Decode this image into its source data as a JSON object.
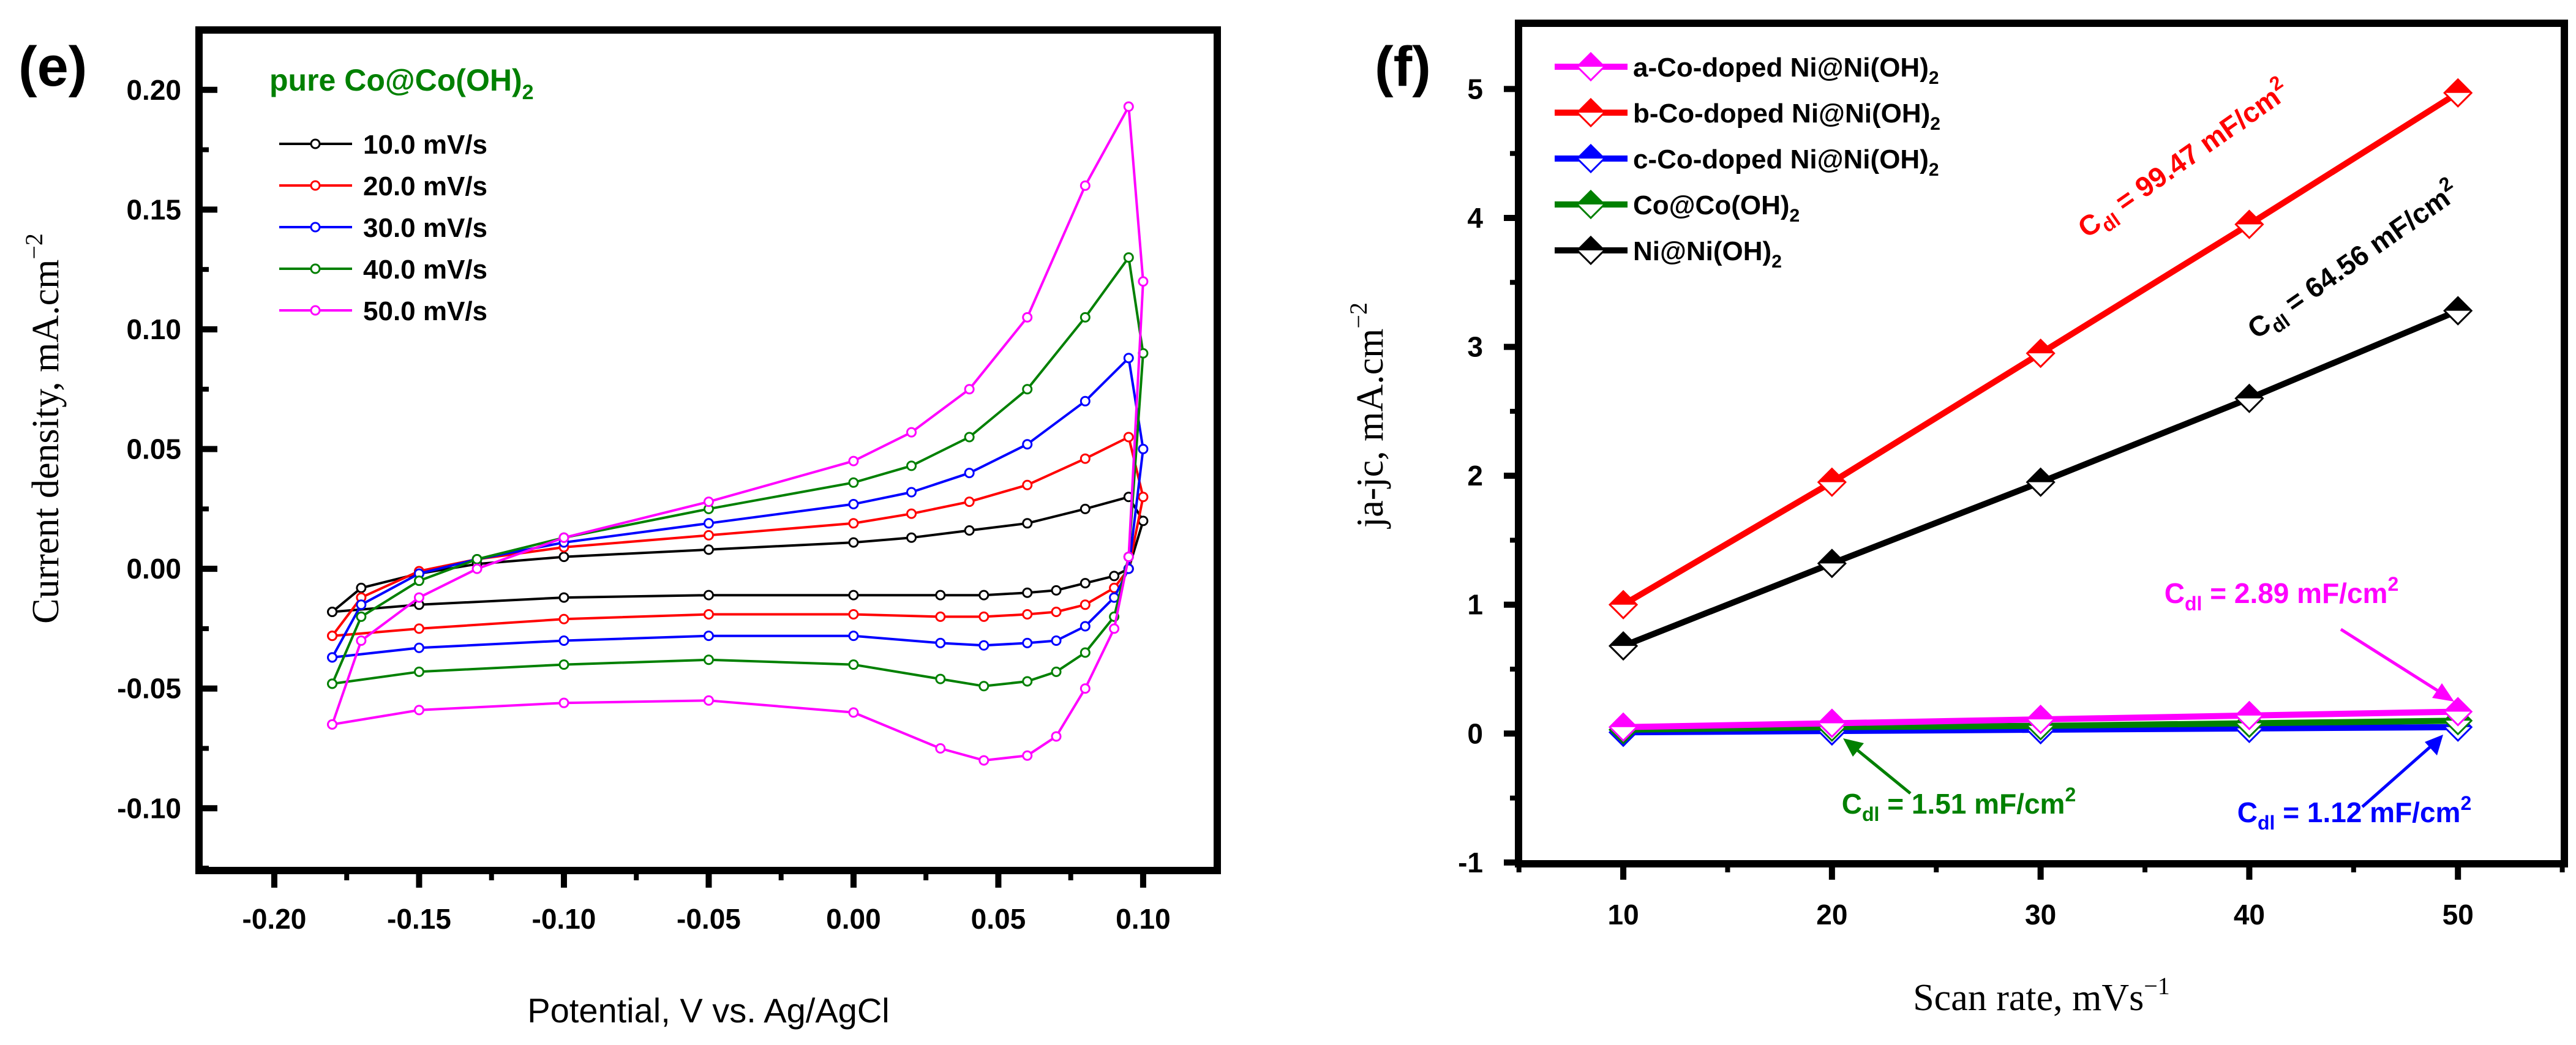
{
  "chart_data": [
    {
      "type": "line",
      "panel_label": "(e)",
      "title": "pure Co@Co(OH)",
      "title_sub": "2",
      "xlabel": "Potential, V vs. Ag/AgCl",
      "ylabel": "Current density, mA.cm",
      "ylabel_sup": "−2",
      "xlim": [
        -0.226,
        0.1256
      ],
      "ylim": [
        -0.126,
        0.225
      ],
      "xticks": [
        -0.2,
        -0.15,
        -0.1,
        -0.05,
        0.0,
        0.05,
        0.1
      ],
      "xtick_labels": [
        "-0.20",
        "-0.15",
        "-0.10",
        "-0.05",
        "0.00",
        "0.05",
        "0.10"
      ],
      "yticks": [
        -0.1,
        -0.05,
        0.0,
        0.05,
        0.1,
        0.15,
        0.2
      ],
      "ytick_labels": [
        "-0.10",
        "-0.05",
        "0.00",
        "0.05",
        "0.10",
        "0.15",
        "0.20"
      ],
      "legend_position": "top-left",
      "x_anodic": [
        -0.18,
        -0.17,
        -0.15,
        -0.13,
        -0.1,
        -0.05,
        0.0,
        0.02,
        0.04,
        0.06,
        0.08,
        0.095
      ],
      "x_cathodic": [
        0.1,
        0.095,
        0.09,
        0.08,
        0.07,
        0.06,
        0.045,
        0.03,
        0.0,
        -0.05,
        -0.1,
        -0.15,
        -0.18
      ],
      "series": [
        {
          "name": "10.0 mV/s",
          "color": "#000000",
          "anodic": [
            -0.018,
            -0.008,
            -0.002,
            0.002,
            0.005,
            0.008,
            0.011,
            0.013,
            0.016,
            0.019,
            0.025,
            0.03
          ],
          "cathodic": [
            0.02,
            0.0,
            -0.003,
            -0.006,
            -0.009,
            -0.01,
            -0.011,
            -0.011,
            -0.011,
            -0.011,
            -0.012,
            -0.015,
            -0.018
          ]
        },
        {
          "name": "20.0 mV/s",
          "color": "#ff0000",
          "anodic": [
            -0.028,
            -0.012,
            -0.001,
            0.004,
            0.009,
            0.014,
            0.019,
            0.023,
            0.028,
            0.035,
            0.046,
            0.055
          ],
          "cathodic": [
            0.03,
            0.0,
            -0.008,
            -0.015,
            -0.018,
            -0.019,
            -0.02,
            -0.02,
            -0.019,
            -0.019,
            -0.021,
            -0.025,
            -0.028
          ]
        },
        {
          "name": "30.0 mV/s",
          "color": "#0000ff",
          "anodic": [
            -0.037,
            -0.015,
            -0.002,
            0.004,
            0.011,
            0.019,
            0.027,
            0.032,
            0.04,
            0.052,
            0.07,
            0.088
          ],
          "cathodic": [
            0.05,
            0.0,
            -0.012,
            -0.024,
            -0.03,
            -0.031,
            -0.032,
            -0.031,
            -0.028,
            -0.028,
            -0.03,
            -0.033,
            -0.037
          ]
        },
        {
          "name": "40.0 mV/s",
          "color": "#008000",
          "anodic": [
            -0.048,
            -0.02,
            -0.005,
            0.004,
            0.013,
            0.025,
            0.036,
            0.043,
            0.055,
            0.075,
            0.105,
            0.13
          ],
          "cathodic": [
            0.09,
            0.005,
            -0.02,
            -0.035,
            -0.043,
            -0.047,
            -0.049,
            -0.046,
            -0.04,
            -0.038,
            -0.04,
            -0.043,
            -0.048
          ]
        },
        {
          "name": "50.0 mV/s",
          "color": "#ff00ff",
          "anodic": [
            -0.065,
            -0.03,
            -0.012,
            0.0,
            0.013,
            0.028,
            0.045,
            0.057,
            0.075,
            0.105,
            0.16,
            0.193
          ],
          "cathodic": [
            0.12,
            0.005,
            -0.025,
            -0.05,
            -0.07,
            -0.078,
            -0.08,
            -0.075,
            -0.06,
            -0.055,
            -0.056,
            -0.059,
            -0.065
          ]
        }
      ]
    },
    {
      "type": "line",
      "panel_label": "(f)",
      "xlabel": "Scan rate, mVs",
      "xlabel_sup": "−1",
      "ylabel": "ja-jc, mA.cm",
      "ylabel_sup": "−2",
      "xlim": [
        4.98,
        55.1
      ],
      "ylim": [
        -1.01,
        5.51
      ],
      "xticks": [
        10,
        20,
        30,
        40,
        50
      ],
      "xtick_labels": [
        "10",
        "20",
        "30",
        "40",
        "50"
      ],
      "yticks": [
        -1,
        0,
        1,
        2,
        3,
        4,
        5
      ],
      "ytick_labels": [
        "-1",
        "0",
        "1",
        "2",
        "3",
        "4",
        "5"
      ],
      "legend_position": "top-left",
      "x": [
        10,
        20,
        30,
        40,
        50
      ],
      "series": [
        {
          "name": "a-Co-doped Ni@Ni(OH)",
          "sub": "2",
          "color": "#ff00ff",
          "values": [
            0.05,
            0.08,
            0.11,
            0.14,
            0.17
          ]
        },
        {
          "name": "b-Co-doped Ni@Ni(OH)",
          "sub": "2",
          "color": "#ff0000",
          "values": [
            1.0,
            1.95,
            2.95,
            3.95,
            4.97
          ]
        },
        {
          "name": "c-Co-doped Ni@Ni(OH)",
          "sub": "2",
          "color": "#0000ff",
          "values": [
            0.01,
            0.02,
            0.03,
            0.04,
            0.05
          ]
        },
        {
          "name": "Co@Co(OH)",
          "sub": "2",
          "color": "#008000",
          "values": [
            0.03,
            0.05,
            0.06,
            0.08,
            0.1
          ]
        },
        {
          "name": "Ni@Ni(OH)",
          "sub": "2",
          "color": "#000000",
          "values": [
            0.68,
            1.32,
            1.95,
            2.6,
            3.28
          ]
        }
      ],
      "annotations": [
        {
          "sym": "C",
          "sub": "dl",
          "text": " = 99.47 mF/cm",
          "sup": "2",
          "color": "#ff0000"
        },
        {
          "sym": "C",
          "sub": "dl",
          "text": " = 64.56 mF/cm",
          "sup": "2",
          "color": "#000000"
        },
        {
          "sym": "C",
          "sub": "dl",
          "text": " = 2.89 mF/cm",
          "sup": "2",
          "color": "#ff00ff"
        },
        {
          "sym": "C",
          "sub": "dl",
          "text": " = 1.51 mF/cm",
          "sup": "2",
          "color": "#008000"
        },
        {
          "sym": "C",
          "sub": "dl",
          "text": " = 1.12 mF/cm",
          "sup": "2",
          "color": "#0000ff"
        }
      ]
    }
  ]
}
